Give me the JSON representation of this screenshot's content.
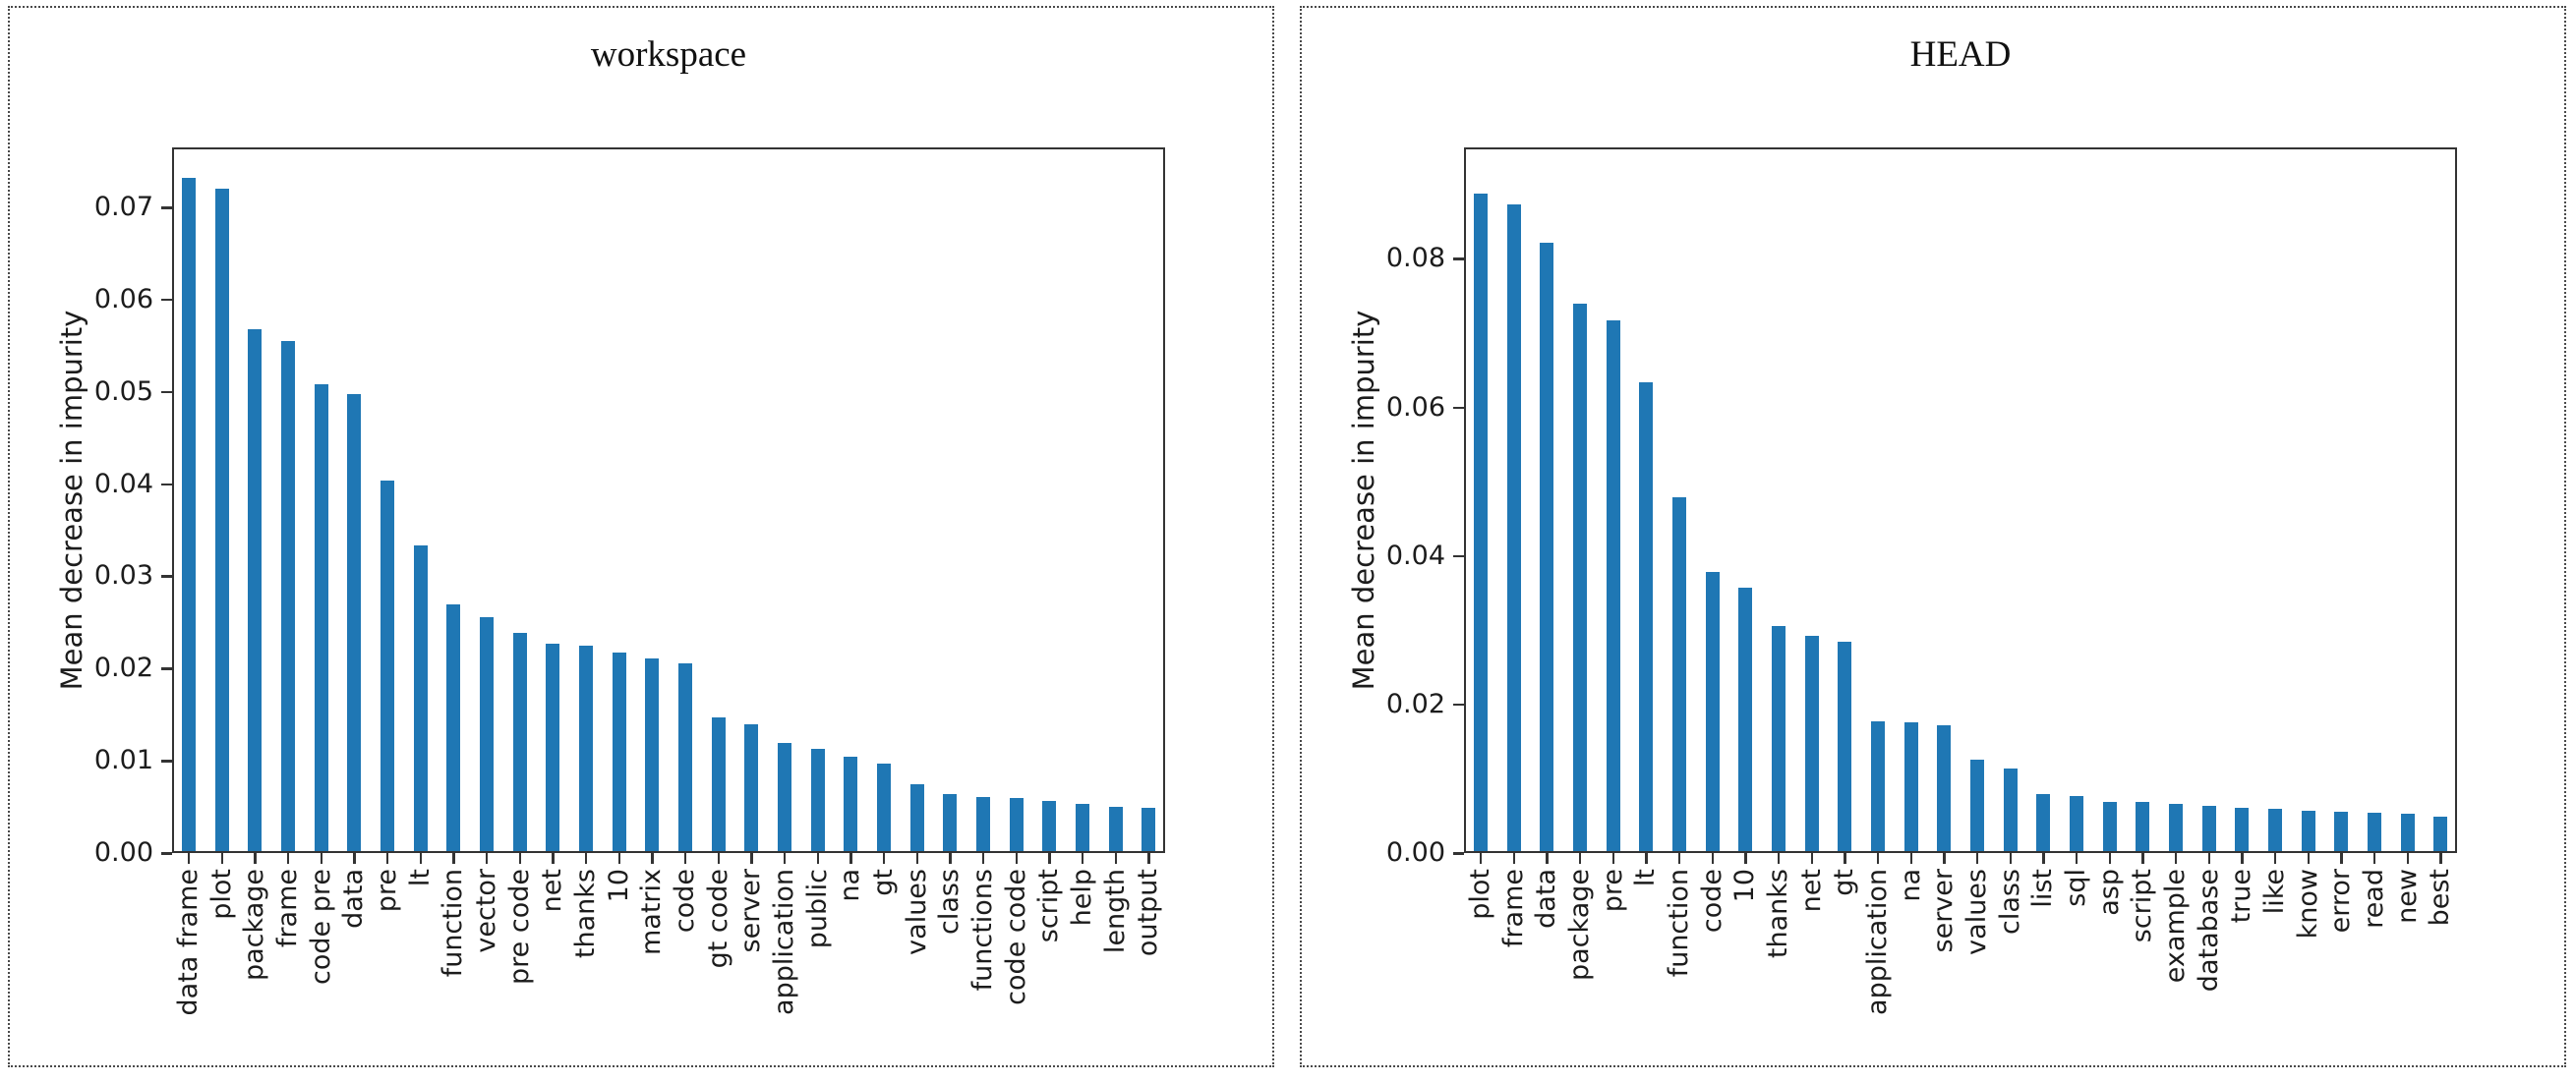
{
  "style": {
    "bar_color": "#1f77b4",
    "spine_color": "#333333",
    "panel_border_color": "#4a4a4a",
    "text_color": "#1c1c1c"
  },
  "chart_data": [
    {
      "type": "bar",
      "title": "workspace",
      "xlabel": "",
      "ylabel": "Mean decrease in impurity",
      "grid": false,
      "legend": false,
      "bar_color": "#1f77b4",
      "ylim": [
        0,
        0.0765
      ],
      "yticks": [
        0.0,
        0.01,
        0.02,
        0.03,
        0.04,
        0.05,
        0.06,
        0.07
      ],
      "ytick_labels": [
        "0.00",
        "0.01",
        "0.02",
        "0.03",
        "0.04",
        "0.05",
        "0.06",
        "0.07"
      ],
      "categories": [
        "data frame",
        "plot",
        "package",
        "frame",
        "code pre",
        "data",
        "pre",
        "lt",
        "function",
        "vector",
        "pre code",
        "net",
        "thanks",
        "10",
        "matrix",
        "code",
        "gt code",
        "server",
        "application",
        "public",
        "na",
        "gt",
        "values",
        "class",
        "functions",
        "code code",
        "script",
        "help",
        "length",
        "output"
      ],
      "values": [
        0.0735,
        0.0723,
        0.057,
        0.0557,
        0.051,
        0.0499,
        0.0405,
        0.0334,
        0.0269,
        0.0255,
        0.0238,
        0.0226,
        0.0224,
        0.0217,
        0.021,
        0.0205,
        0.0146,
        0.0138,
        0.0118,
        0.0112,
        0.0103,
        0.0096,
        0.0073,
        0.0062,
        0.0059,
        0.0058,
        0.0055,
        0.0051,
        0.0048,
        0.0047
      ]
    },
    {
      "type": "bar",
      "title": "HEAD",
      "xlabel": "",
      "ylabel": "Mean decrease in impurity",
      "grid": false,
      "legend": false,
      "bar_color": "#1f77b4",
      "ylim": [
        0,
        0.095
      ],
      "yticks": [
        0.0,
        0.02,
        0.04,
        0.06,
        0.08
      ],
      "ytick_labels": [
        "0.00",
        "0.02",
        "0.04",
        "0.06",
        "0.08"
      ],
      "categories": [
        "plot",
        "frame",
        "data",
        "package",
        "pre",
        "lt",
        "function",
        "code",
        "10",
        "thanks",
        "net",
        "gt",
        "application",
        "na",
        "server",
        "values",
        "class",
        "list",
        "sql",
        "asp",
        "script",
        "example",
        "database",
        "true",
        "like",
        "know",
        "error",
        "read",
        "new",
        "best"
      ],
      "values": [
        0.0892,
        0.0877,
        0.0825,
        0.0742,
        0.072,
        0.0636,
        0.0479,
        0.0379,
        0.0357,
        0.0305,
        0.0292,
        0.0284,
        0.0176,
        0.0174,
        0.017,
        0.0124,
        0.0112,
        0.0077,
        0.0075,
        0.0067,
        0.0066,
        0.0064,
        0.0061,
        0.0058,
        0.0057,
        0.0055,
        0.0053,
        0.0052,
        0.0051,
        0.0046
      ]
    }
  ]
}
